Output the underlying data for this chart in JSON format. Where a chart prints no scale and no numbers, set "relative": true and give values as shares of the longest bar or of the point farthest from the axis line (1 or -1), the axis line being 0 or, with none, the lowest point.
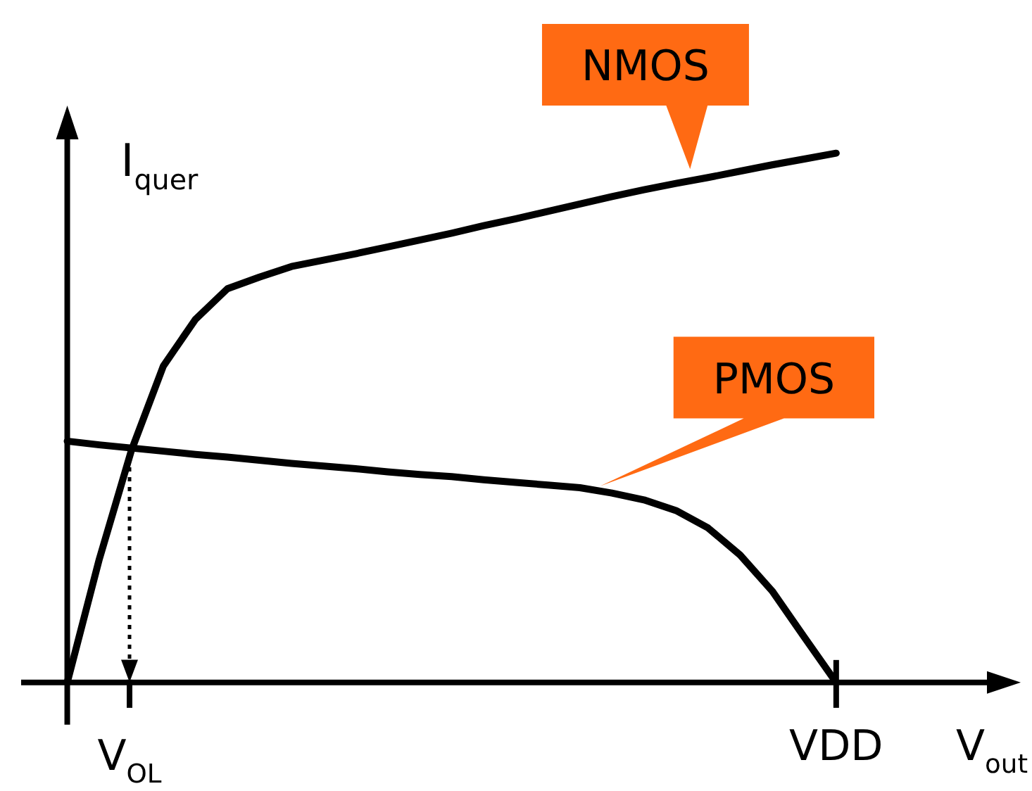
{
  "chart_data": {
    "type": "line",
    "relative": true,
    "ylabel": "I$_{quer}$",
    "xlabel": "V$_{out}$",
    "legend": false,
    "marker": "none",
    "line_style": "solid",
    "categories": [
      null,
      null,
      null,
      null,
      null,
      null,
      null,
      null,
      null,
      null,
      null,
      null,
      null,
      null,
      null,
      null,
      null,
      null,
      null,
      null,
      null,
      null,
      null,
      null,
      null
    ],
    "series": [
      {
        "name": "NMOS",
        "color": "#000000",
        "values": [
          0,
          0.233,
          0.438,
          0.598,
          0.686,
          0.744,
          0.766,
          0.786,
          0.798,
          0.81,
          0.823,
          0.836,
          0.849,
          0.863,
          0.876,
          0.89,
          0.904,
          0.918,
          0.931,
          0.943,
          0.954,
          0.966,
          0.978,
          0.989,
          1.0
        ]
      },
      {
        "name": "PMOS",
        "color": "#000000",
        "values": [
          0.456,
          0.449,
          0.443,
          0.437,
          0.431,
          0.426,
          0.42,
          0.414,
          0.409,
          0.404,
          0.398,
          0.393,
          0.389,
          0.383,
          0.378,
          0.373,
          0.368,
          0.358,
          0.345,
          0.325,
          0.292,
          0.241,
          0.173,
          0.086,
          0
        ]
      }
    ],
    "annotations": [
      "V$_{OL}$",
      "VDD"
    ]
  }
}
